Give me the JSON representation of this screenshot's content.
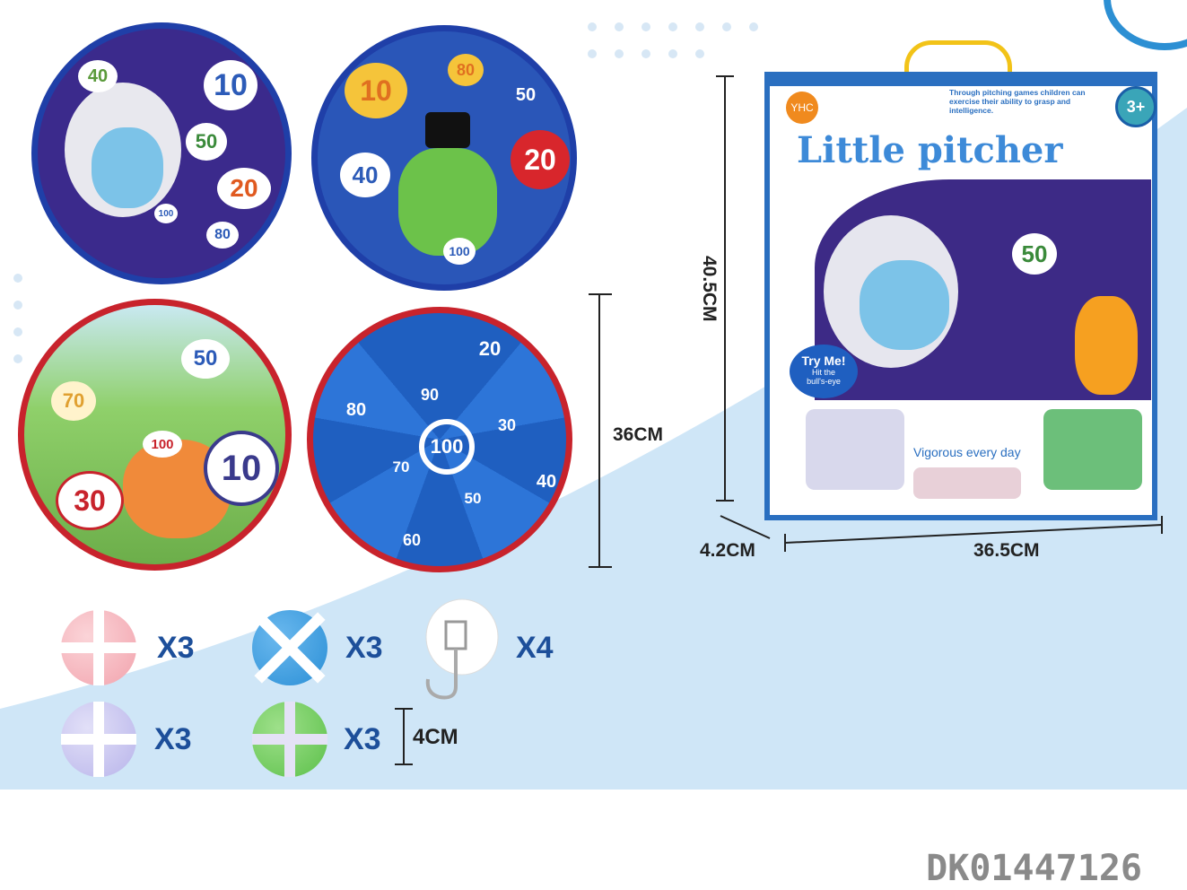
{
  "boards": [
    {
      "theme": "space-astronaut-dino",
      "numbers": [
        "40",
        "10",
        "50",
        "20",
        "100",
        "80"
      ],
      "color": "#3b2a8c",
      "rim": "#1f3fa8"
    },
    {
      "theme": "space-green-dino",
      "numbers": [
        "10",
        "80",
        "50",
        "20",
        "40",
        "100"
      ],
      "color": "#2a56b8",
      "rim": "#1f3fa8"
    },
    {
      "theme": "dinosaur-jungle",
      "numbers": [
        "50",
        "70",
        "100",
        "10",
        "30"
      ],
      "color": "#7fc26a",
      "rim": "#c8232c"
    },
    {
      "theme": "ocean",
      "numbers": [
        "20",
        "90",
        "80",
        "30",
        "100",
        "70",
        "40",
        "50",
        "60"
      ],
      "color": "#2866c8",
      "rim": "#c8232c"
    }
  ],
  "dimensions": {
    "board_height": "36CM",
    "box_height": "40.5CM",
    "box_depth": "4.2CM",
    "box_width": "36.5CM",
    "ball_size": "4CM"
  },
  "box": {
    "brand": "YHC",
    "tagline": "Through pitching games children can exercise their ability to grasp and intelligence.",
    "age": "3+",
    "title": "Little pitcher",
    "try_me": "Try Me!",
    "try_me_sub": "Hit the bull's-eye",
    "slogan": "Vigorous every day",
    "board_number": "50"
  },
  "accessories": [
    {
      "item": "pink-ball",
      "qty": "X3",
      "color": "#f2a3ad"
    },
    {
      "item": "blue-ball",
      "qty": "X3",
      "color": "#2a8fd6"
    },
    {
      "item": "suction-hook",
      "qty": "X4"
    },
    {
      "item": "purple-ball",
      "qty": "X3",
      "color": "#b8b4ea"
    },
    {
      "item": "green-ball",
      "qty": "X3",
      "color": "#5cc04a"
    }
  ],
  "product_code": "DK01447126",
  "colors": {
    "background_blue": "#cfe6f7",
    "label_blue": "#1d4f9a"
  }
}
